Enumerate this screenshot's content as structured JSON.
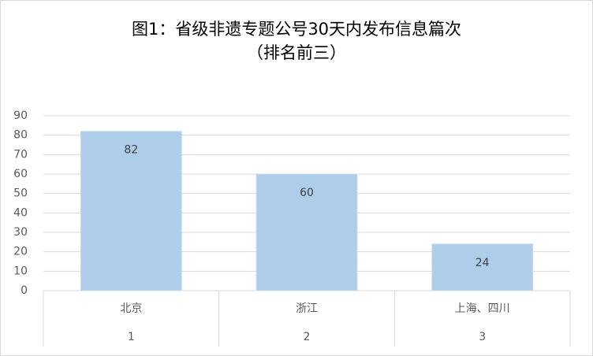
{
  "chart_data": {
    "type": "bar",
    "title": "图1：省级非遗专题公号30天内发布信息篇次",
    "subtitle": "（排名前三）",
    "categories": [
      "北京",
      "浙江",
      "上海、四川"
    ],
    "ranks": [
      1,
      2,
      3
    ],
    "values": [
      82,
      60,
      24
    ],
    "color": "#aecde9",
    "ylim": [
      0,
      90
    ],
    "yticks": [
      0,
      10,
      20,
      30,
      40,
      50,
      60,
      70,
      80,
      90
    ],
    "grid": true
  }
}
